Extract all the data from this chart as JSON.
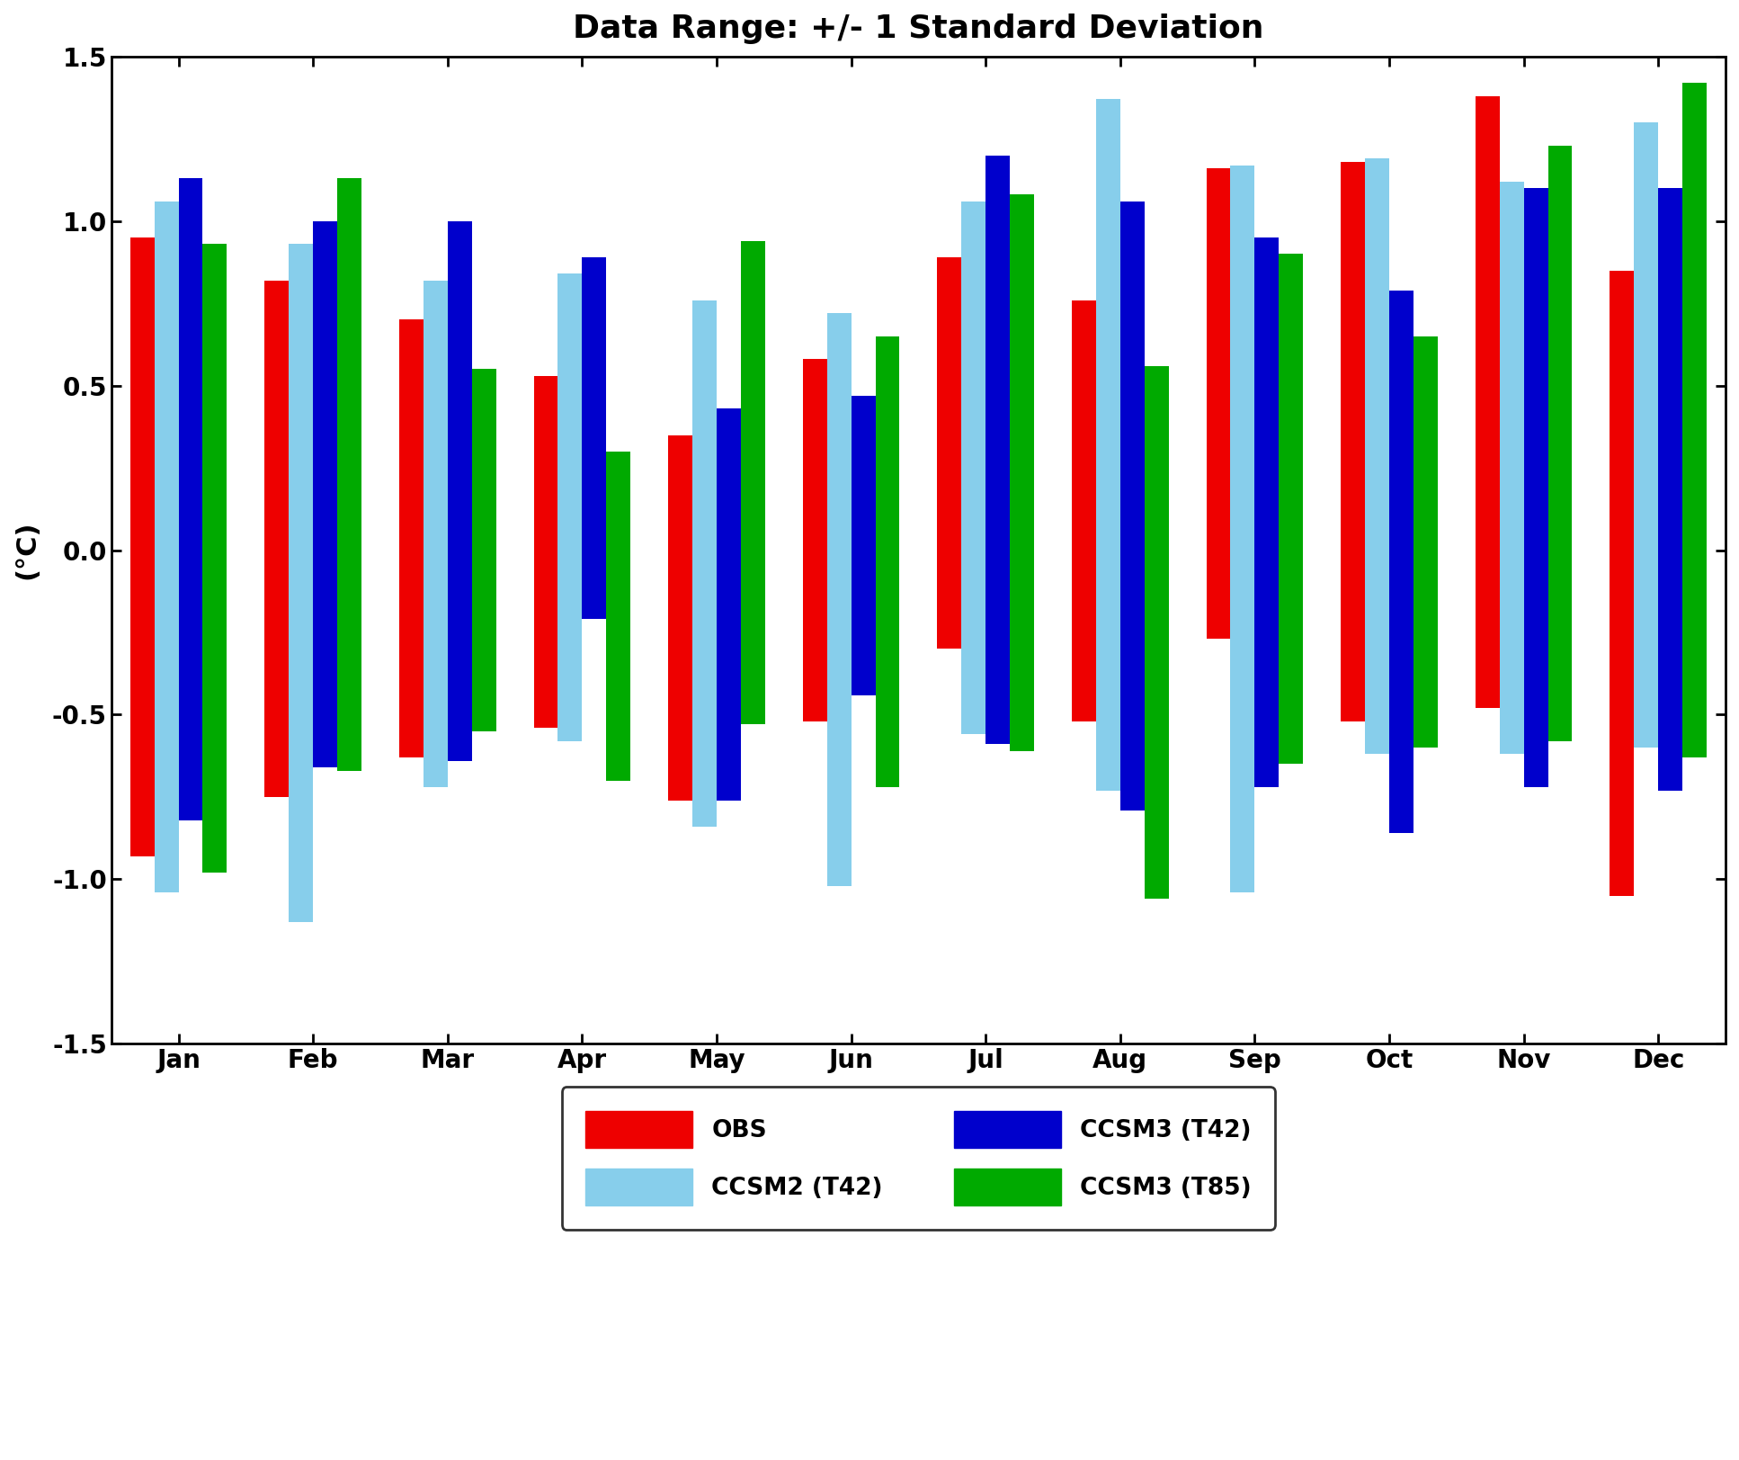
{
  "title": "Data Range: +/- 1 Standard Deviation",
  "ylabel": "(°C)",
  "ylim": [
    -1.5,
    1.5
  ],
  "yticks": [
    -1.5,
    -1.0,
    -0.5,
    0.0,
    0.5,
    1.0,
    1.5
  ],
  "months": [
    "Jan",
    "Feb",
    "Mar",
    "Apr",
    "May",
    "Jun",
    "Jul",
    "Aug",
    "Sep",
    "Oct",
    "Nov",
    "Dec"
  ],
  "series_order": [
    "OBS",
    "CCSM2 (T42)",
    "CCSM3 (T42)",
    "CCSM3 (T85)"
  ],
  "series": {
    "OBS": {
      "color": "#EE0000",
      "top": [
        0.95,
        0.82,
        0.7,
        0.53,
        0.35,
        0.58,
        0.89,
        0.76,
        1.16,
        1.18,
        1.38,
        0.85
      ],
      "bottom": [
        -0.93,
        -0.75,
        -0.63,
        -0.54,
        -0.76,
        -0.52,
        -0.3,
        -0.52,
        -0.27,
        -0.52,
        -0.48,
        -1.05
      ]
    },
    "CCSM2 (T42)": {
      "color": "#87CEEB",
      "top": [
        1.06,
        0.93,
        0.82,
        0.84,
        0.76,
        0.72,
        1.06,
        1.37,
        1.17,
        1.19,
        1.12,
        1.3
      ],
      "bottom": [
        -1.04,
        -1.13,
        -0.72,
        -0.58,
        -0.84,
        -1.02,
        -0.56,
        -0.73,
        -1.04,
        -0.62,
        -0.62,
        -0.6
      ]
    },
    "CCSM3 (T42)": {
      "color": "#0000CC",
      "top": [
        1.13,
        1.0,
        1.0,
        0.89,
        0.43,
        0.47,
        1.2,
        1.06,
        0.95,
        0.79,
        1.1,
        1.1
      ],
      "bottom": [
        -0.82,
        -0.66,
        -0.64,
        -0.21,
        -0.76,
        -0.44,
        -0.59,
        -0.79,
        -0.72,
        -0.86,
        -0.72,
        -0.73
      ]
    },
    "CCSM3 (T85)": {
      "color": "#00AA00",
      "top": [
        0.93,
        1.13,
        0.55,
        0.3,
        0.94,
        0.65,
        1.08,
        0.56,
        0.9,
        0.65,
        1.23,
        1.42
      ],
      "bottom": [
        -0.98,
        -0.67,
        -0.55,
        -0.7,
        -0.53,
        -0.72,
        -0.61,
        -1.06,
        -0.65,
        -0.6,
        -0.58,
        -0.63
      ]
    }
  },
  "bar_width": 0.18,
  "background_color": "#ffffff",
  "title_fontsize": 26,
  "label_fontsize": 22,
  "tick_fontsize": 20,
  "legend_fontsize": 19
}
